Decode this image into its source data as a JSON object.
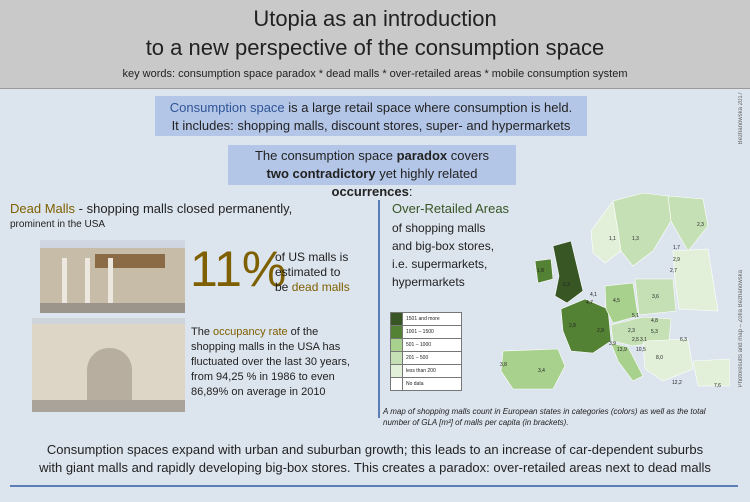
{
  "header": {
    "title_line1": "Utopia as an introduction",
    "title_line2": "to a new perspective of the consumption space",
    "keywords": "key words: consumption space paradox * dead malls * over-retailed areas * mobile consumption system"
  },
  "credits": {
    "top": "Bezhanowska 2017",
    "side": "Photoresults and map – Zofia Bezhanowska"
  },
  "intro": {
    "term": "Consumption space",
    "rest1": " is a large retail space where consumption is held.",
    "line2": "It includes: shopping malls, discount stores, super- and hypermarkets"
  },
  "paradox": {
    "part1": "The consumption space ",
    "bold1": "paradox",
    "part2": " covers",
    "bold2": "two contradictory",
    "part3": " yet highly related ",
    "bold3": "occurrences",
    "part4": ":"
  },
  "dead_malls": {
    "title": "Dead Malls",
    "title_rest": " - shopping malls closed permanently,",
    "subtitle": "prominent in the USA",
    "big_number": "11%",
    "stat_line1": "of US malls is",
    "stat_line2": "estimated to",
    "stat_line3_a": "be ",
    "stat_line3_b": "dead malls",
    "occ_a": "The ",
    "occ_h": "occupancy rate",
    "occ_b": " of the",
    "occ_line2": "shopping malls in the USA has",
    "occ_line3": "fluctuated over the last 30 years,",
    "occ_line4": "from 94,25 % in 1986 to even",
    "occ_line5": "86,89% on average in 2010"
  },
  "over_retailed": {
    "title": "Over-Retailed Areas",
    "line1": "of shopping malls",
    "line2": "and big-box stores,",
    "line3": "i.e. supermarkets,",
    "line4": "hypermarkets"
  },
  "map": {
    "legend": [
      {
        "label": "1501 and more",
        "color": "#375623"
      },
      {
        "label": "1001 – 1500",
        "color": "#548235"
      },
      {
        "label": "501 – 1000",
        "color": "#a9d18e"
      },
      {
        "label": "201 – 500",
        "color": "#c5e0b4"
      },
      {
        "label": "less than 200",
        "color": "#e2f0d9"
      },
      {
        "label": "No data",
        "color": "#ffffff"
      }
    ],
    "values": [
      "2,3",
      "1,1",
      "1,3",
      "1,7",
      "2,9",
      "2,7",
      "1,8",
      "2,3",
      "4,7",
      "4,1",
      "4,5",
      "3,6",
      "2,8",
      "5,1",
      "4,8",
      "2,9",
      "2,3",
      "5,3",
      "3,9",
      "2,5",
      "3,1",
      "6,3",
      "13,9",
      "10,5",
      "8,0",
      "12,2",
      "7,6",
      "3,4",
      "3,8"
    ],
    "caption": "A map of shopping malls count in European states in categories (colors) as well as the total number of GLA [m²] of malls per capita (in brackets)."
  },
  "bottom": {
    "line1": "Consumption spaces expand with urban and suburban growth; this leads to an increase of car-dependent suburbs",
    "line2": "with giant malls and rapidly developing big-box stores. This creates a paradox: over-retailed areas next to dead malls"
  }
}
